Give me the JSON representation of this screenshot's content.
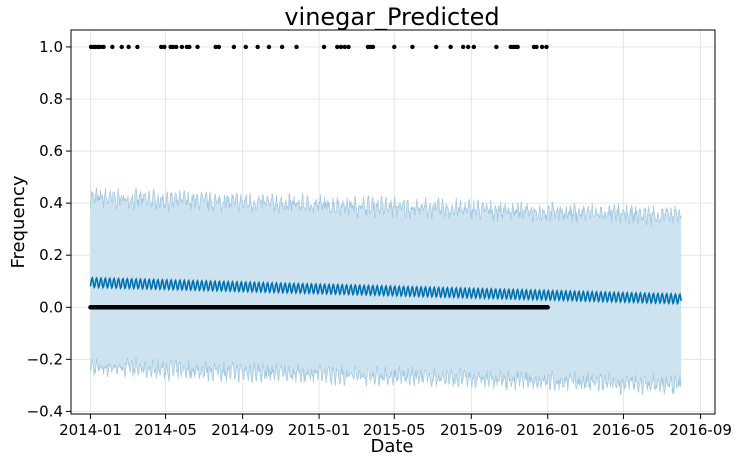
{
  "chart_data": {
    "type": "line",
    "title": "vinegar_Predicted",
    "xlabel": "Date",
    "ylabel": "Frequency",
    "x_range": [
      "2013-12-01",
      "2016-09-24"
    ],
    "ylim": [
      -0.41,
      1.065
    ],
    "grid": true,
    "x_ticks": [
      "2014-01",
      "2014-05",
      "2014-09",
      "2015-01",
      "2015-05",
      "2015-09",
      "2016-01",
      "2016-05",
      "2016-09"
    ],
    "y_ticks": [
      -0.4,
      -0.2,
      0.0,
      0.2,
      0.4,
      0.6,
      0.8,
      1.0
    ],
    "colors": {
      "forecast_line": "#0072B2",
      "uncertainty_band": "#cde3ef",
      "uncertainty_edge": "#9fc6e0",
      "observed_points": "#000000",
      "grid": "#e0e0e0"
    },
    "series": [
      {
        "kind": "forecast",
        "x": [
          "2014-01-01",
          "2016-08-01"
        ],
        "y": [
          0.095,
          0.032
        ],
        "weekly_amplitude": 0.018
      },
      {
        "kind": "uncertainty",
        "x": [
          "2014-01-01",
          "2016-08-01"
        ],
        "upper": [
          0.42,
          0.35
        ],
        "lower": [
          -0.23,
          -0.3
        ]
      },
      {
        "kind": "observed",
        "baseline_range": [
          "2014-01-01",
          "2016-01-01"
        ],
        "baseline_value": 0.0,
        "ones_value": 1.0,
        "ones_dates": [
          "2014-01-02",
          "2014-01-06",
          "2014-01-09",
          "2014-01-13",
          "2014-01-17",
          "2014-01-22",
          "2014-02-05",
          "2014-02-20",
          "2014-03-03",
          "2014-03-17",
          "2014-04-24",
          "2014-04-29",
          "2014-05-09",
          "2014-05-13",
          "2014-05-18",
          "2014-05-27",
          "2014-06-04",
          "2014-06-08",
          "2014-06-21",
          "2014-07-20",
          "2014-07-25",
          "2014-08-18",
          "2014-09-06",
          "2014-09-25",
          "2014-10-13",
          "2014-11-03",
          "2014-11-26",
          "2015-01-09",
          "2015-01-30",
          "2015-02-05",
          "2015-02-11",
          "2015-02-17",
          "2015-03-20",
          "2015-03-24",
          "2015-03-28",
          "2015-05-01",
          "2015-05-30",
          "2015-07-07",
          "2015-07-30",
          "2015-08-19",
          "2015-08-27",
          "2015-09-05",
          "2015-10-11",
          "2015-11-03",
          "2015-11-07",
          "2015-11-11",
          "2015-11-14",
          "2015-12-10",
          "2015-12-14",
          "2015-12-23",
          "2015-12-30"
        ]
      }
    ]
  }
}
